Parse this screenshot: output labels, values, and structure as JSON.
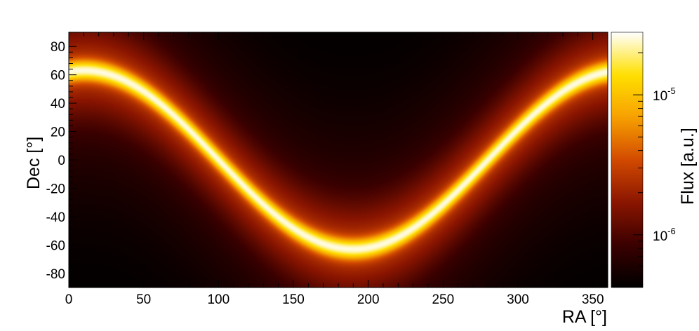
{
  "chart_data": {
    "type": "heatmap",
    "title": "",
    "xlabel": "RA [°]",
    "ylabel": "Dec [°]",
    "colorbar_label": "Flux [a.u.]",
    "xlim": [
      0,
      360
    ],
    "ylim": [
      -90,
      90
    ],
    "x_ticks": [
      0,
      50,
      100,
      150,
      200,
      250,
      300,
      350
    ],
    "y_ticks": [
      -80,
      -60,
      -40,
      -20,
      0,
      20,
      40,
      60,
      80
    ],
    "x_tick_labels": [
      "0",
      "50",
      "100",
      "150",
      "200",
      "250",
      "300",
      "350"
    ],
    "y_tick_labels": [
      "-80",
      "-60",
      "-40",
      "-20",
      "0",
      "20",
      "40",
      "60",
      "80"
    ],
    "colorbar": {
      "scale": "log",
      "range": [
        4.2e-07,
        2.8e-05
      ],
      "labeled_ticks": [
        {
          "value": 1e-06,
          "base": "10",
          "exponent": "-6"
        },
        {
          "value": 1e-05,
          "base": "10",
          "exponent": "-5"
        }
      ],
      "colormap": "hot",
      "colormap_stops": [
        "#000000",
        "#3a0000",
        "#8a1500",
        "#d24a00",
        "#f7a000",
        "#ffe000",
        "#ffffff"
      ]
    },
    "band": {
      "description_of_shape": "sinusoidal ridge of maximum flux",
      "peak_dec": 63,
      "peak_ra": 10,
      "trough_dec": -63,
      "trough_ra": 190,
      "crossing_ra": [
        100,
        280
      ]
    },
    "minima": [
      {
        "ra": 10,
        "dec": -27
      },
      {
        "ra": 190,
        "dec": 27
      }
    ],
    "grid": false,
    "legend": "none"
  }
}
